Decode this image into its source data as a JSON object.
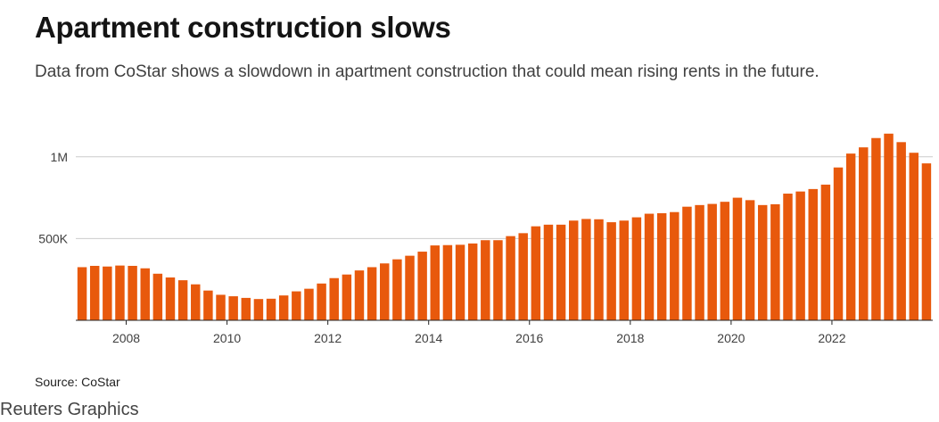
{
  "header": {
    "title": "Apartment construction slows",
    "subtitle": "Data from CoStar shows a slowdown in apartment construction that could mean rising rents in the future."
  },
  "footer": {
    "source": "Source: CoStar",
    "credit": "Reuters Graphics"
  },
  "colors": {
    "bar": "#e8590c",
    "gridline": "#cccccc",
    "axis": "#222222"
  },
  "chart_data": {
    "type": "bar",
    "title": "Apartment construction slows",
    "xlabel": "",
    "ylabel": "",
    "ylim": [
      0,
      1250000
    ],
    "x_tick_labels": [
      "2008",
      "2010",
      "2012",
      "2014",
      "2016",
      "2018",
      "2020",
      "2022"
    ],
    "y_ticks": [
      {
        "value": 500000,
        "label": "500K"
      },
      {
        "value": 1000000,
        "label": "1M"
      }
    ],
    "grid": true,
    "categories": [
      "2007 Q1",
      "2007 Q2",
      "2007 Q3",
      "2007 Q4",
      "2008 Q1",
      "2008 Q2",
      "2008 Q3",
      "2008 Q4",
      "2009 Q1",
      "2009 Q2",
      "2009 Q3",
      "2009 Q4",
      "2010 Q1",
      "2010 Q2",
      "2010 Q3",
      "2010 Q4",
      "2011 Q1",
      "2011 Q2",
      "2011 Q3",
      "2011 Q4",
      "2012 Q1",
      "2012 Q2",
      "2012 Q3",
      "2012 Q4",
      "2013 Q1",
      "2013 Q2",
      "2013 Q3",
      "2013 Q4",
      "2014 Q1",
      "2014 Q2",
      "2014 Q3",
      "2014 Q4",
      "2015 Q1",
      "2015 Q2",
      "2015 Q3",
      "2015 Q4",
      "2016 Q1",
      "2016 Q2",
      "2016 Q3",
      "2016 Q4",
      "2017 Q1",
      "2017 Q2",
      "2017 Q3",
      "2017 Q4",
      "2018 Q1",
      "2018 Q2",
      "2018 Q3",
      "2018 Q4",
      "2019 Q1",
      "2019 Q2",
      "2019 Q3",
      "2019 Q4",
      "2020 Q1",
      "2020 Q2",
      "2020 Q3",
      "2020 Q4",
      "2021 Q1",
      "2021 Q2",
      "2021 Q3",
      "2021 Q4",
      "2022 Q1",
      "2022 Q2",
      "2022 Q3",
      "2022 Q4",
      "2023 Q1",
      "2023 Q2",
      "2023 Q3",
      "2023 Q4"
    ],
    "values": [
      325000,
      333000,
      329000,
      335000,
      333000,
      318000,
      285000,
      262000,
      245000,
      220000,
      182000,
      156000,
      147000,
      137000,
      130000,
      132000,
      152000,
      177000,
      193000,
      225000,
      258000,
      280000,
      305000,
      325000,
      348000,
      373000,
      395000,
      420000,
      458000,
      460000,
      462000,
      470000,
      490000,
      490000,
      515000,
      533000,
      575000,
      585000,
      585000,
      610000,
      620000,
      618000,
      600000,
      610000,
      630000,
      652000,
      655000,
      662000,
      695000,
      705000,
      712000,
      725000,
      750000,
      735000,
      705000,
      710000,
      775000,
      788000,
      803000,
      830000,
      935000,
      1020000,
      1058000,
      1115000,
      1142000,
      1090000,
      1025000,
      960000
    ]
  }
}
